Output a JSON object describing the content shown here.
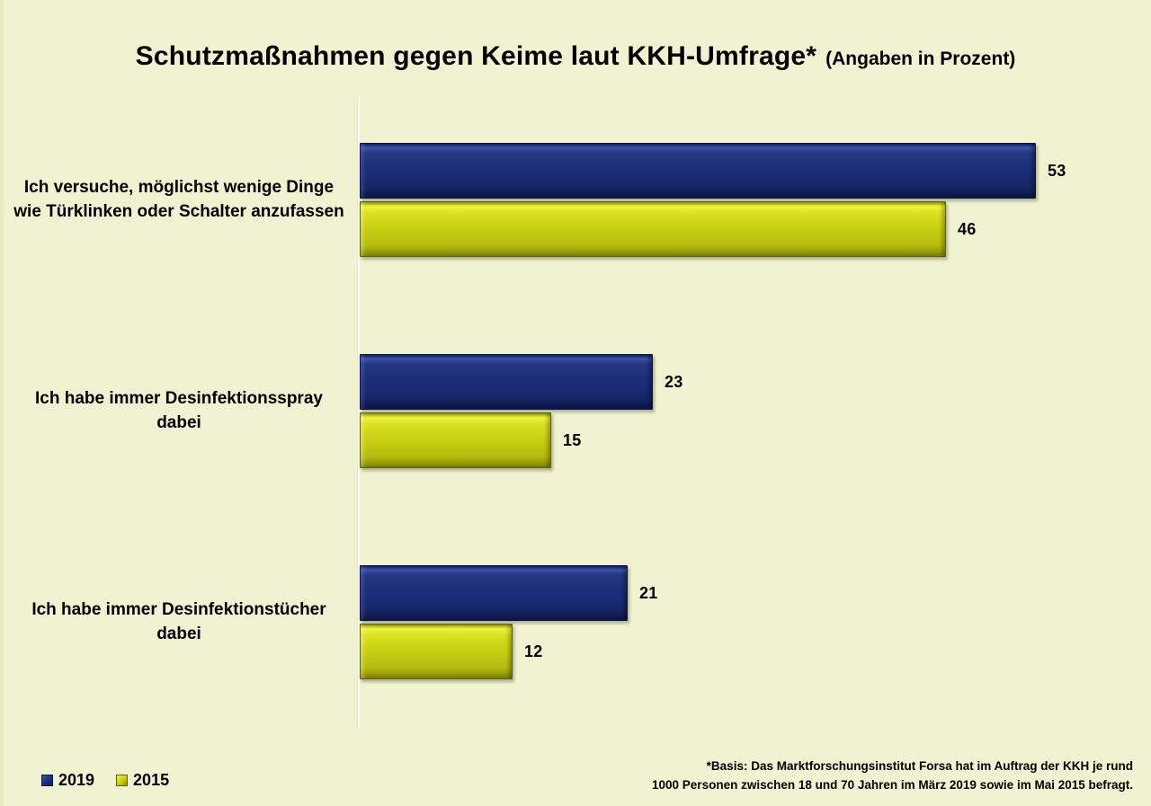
{
  "title": {
    "main": "Schutzmaßnahmen gegen Keime laut KKH-Umfrage*",
    "suffix": "(Angaben in Prozent)"
  },
  "chart_data": {
    "type": "bar",
    "orientation": "horizontal",
    "title": "Schutzmaßnahmen gegen Keime laut KKH-Umfrage* (Angaben in Prozent)",
    "unit": "percent",
    "categories": [
      "Ich versuche, möglichst wenige Dinge wie Türklinken oder Schalter anzufassen",
      "Ich habe immer Desinfektionsspray dabei",
      "Ich habe immer Desinfektionstücher dabei"
    ],
    "series": [
      {
        "name": "2019",
        "color": "#1b2c79",
        "values": [
          53,
          23,
          21
        ]
      },
      {
        "name": "2015",
        "color": "#c6cd12",
        "values": [
          46,
          15,
          12
        ]
      }
    ],
    "xlim": [
      0,
      60
    ],
    "grid": false,
    "value_labels": true,
    "legend_position": "bottom-left",
    "background_color": "#f0f2d1"
  },
  "footnote": {
    "line1": "*Basis: Das Marktforschungsinstitut Forsa hat im Auftrag der KKH je rund",
    "line2": "1000 Personen zwischen 18 und 70 Jahren im März 2019 sowie im Mai 2015 befragt."
  }
}
